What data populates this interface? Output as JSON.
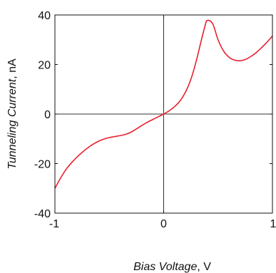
{
  "chart_data": {
    "type": "line",
    "xlabel_italic": "Bias Voltage",
    "xlabel_unit": ", V",
    "ylabel_italic": "Tunneling Current",
    "ylabel_unit": ", nA",
    "xlim": [
      -1,
      1
    ],
    "ylim": [
      -40,
      40
    ],
    "x_ticks": [
      -1,
      0,
      1
    ],
    "x_tick_labels": [
      "-1",
      "0",
      "1"
    ],
    "y_ticks": [
      -40,
      -20,
      0,
      20,
      40
    ],
    "y_tick_labels": [
      "-40",
      "-20",
      "0",
      "20",
      "40"
    ],
    "zero_lines": true,
    "grid": false,
    "series": [
      {
        "color": "#e8202e",
        "x": [
          -1.0,
          -0.95,
          -0.9,
          -0.85,
          -0.8,
          -0.75,
          -0.7,
          -0.65,
          -0.6,
          -0.55,
          -0.5,
          -0.45,
          -0.4,
          -0.35,
          -0.3,
          -0.25,
          -0.2,
          -0.15,
          -0.1,
          -0.05,
          0.0,
          0.05,
          0.1,
          0.15,
          0.2,
          0.25,
          0.3,
          0.35,
          0.38,
          0.4,
          0.45,
          0.5,
          0.55,
          0.6,
          0.65,
          0.7,
          0.75,
          0.8,
          0.85,
          0.9,
          0.95,
          1.0
        ],
        "y": [
          -30.0,
          -26.0,
          -22.5,
          -19.8,
          -17.5,
          -15.5,
          -13.7,
          -12.2,
          -11.0,
          -10.1,
          -9.5,
          -9.1,
          -8.7,
          -8.2,
          -7.3,
          -6.0,
          -4.6,
          -3.3,
          -2.2,
          -1.1,
          0.0,
          1.3,
          3.0,
          5.3,
          8.8,
          14.0,
          21.5,
          30.5,
          35.5,
          37.8,
          36.5,
          30.0,
          25.5,
          23.0,
          21.8,
          21.5,
          22.0,
          23.2,
          24.8,
          26.8,
          29.0,
          31.5
        ]
      }
    ]
  }
}
